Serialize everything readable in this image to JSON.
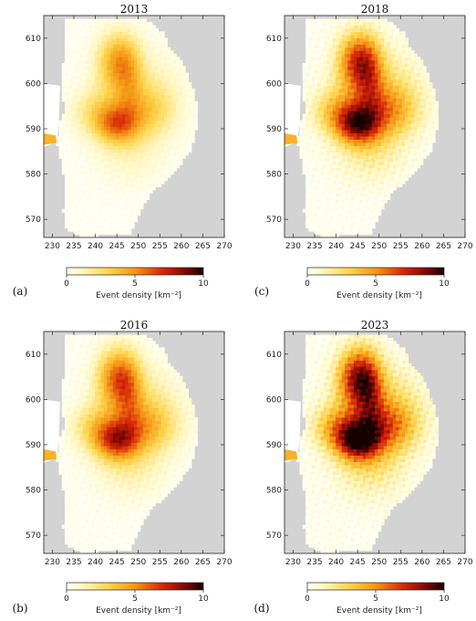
{
  "chart_data": {
    "type": "heatmap",
    "colormap": "hot_r",
    "colors": {
      "background_mask": "#d3d3d3",
      "no_data": "#ffffff",
      "low": "#fffff0",
      "mid": "#f0a000",
      "high": "#c00000",
      "max": "#1a0000"
    },
    "xlim": [
      228,
      270
    ],
    "ylim": [
      566,
      615
    ],
    "xticks": [
      "230",
      "235",
      "240",
      "245",
      "250",
      "255",
      "260",
      "265",
      "270"
    ],
    "yticks": [
      "570",
      "580",
      "590",
      "600",
      "610"
    ],
    "colorbar": {
      "ticks": [
        "0",
        "5",
        "10"
      ],
      "range": [
        0,
        10
      ],
      "label": "Event density  [km⁻²]"
    },
    "panels": [
      {
        "letter": "(a)",
        "title": "2013",
        "intensity": 0.55
      },
      {
        "letter": "(c)",
        "title": "2018",
        "intensity": 0.85
      },
      {
        "letter": "(b)",
        "title": "2016",
        "intensity": 0.7
      },
      {
        "letter": "(d)",
        "title": "2023",
        "intensity": 1.0
      }
    ],
    "hotspots": [
      {
        "x": 245,
        "y": 605,
        "sx": 3.2,
        "sy": 4.5,
        "a": 7
      },
      {
        "x": 245,
        "y": 591,
        "sx": 3.5,
        "sy": 3.0,
        "a": 8
      },
      {
        "x": 252,
        "y": 594,
        "sx": 5.0,
        "sy": 4.0,
        "a": 4.5
      },
      {
        "x": 240,
        "y": 594,
        "sx": 4.0,
        "sy": 3.5,
        "a": 3.5
      },
      {
        "x": 248,
        "y": 585,
        "sx": 6.0,
        "sy": 5.0,
        "a": 2.0
      },
      {
        "x": 250,
        "y": 600,
        "sx": 7.0,
        "sy": 6.0,
        "a": 2.5
      },
      {
        "x": 229.5,
        "y": 587.5,
        "sx": 0.8,
        "sy": 0.8,
        "a": 4
      }
    ]
  }
}
